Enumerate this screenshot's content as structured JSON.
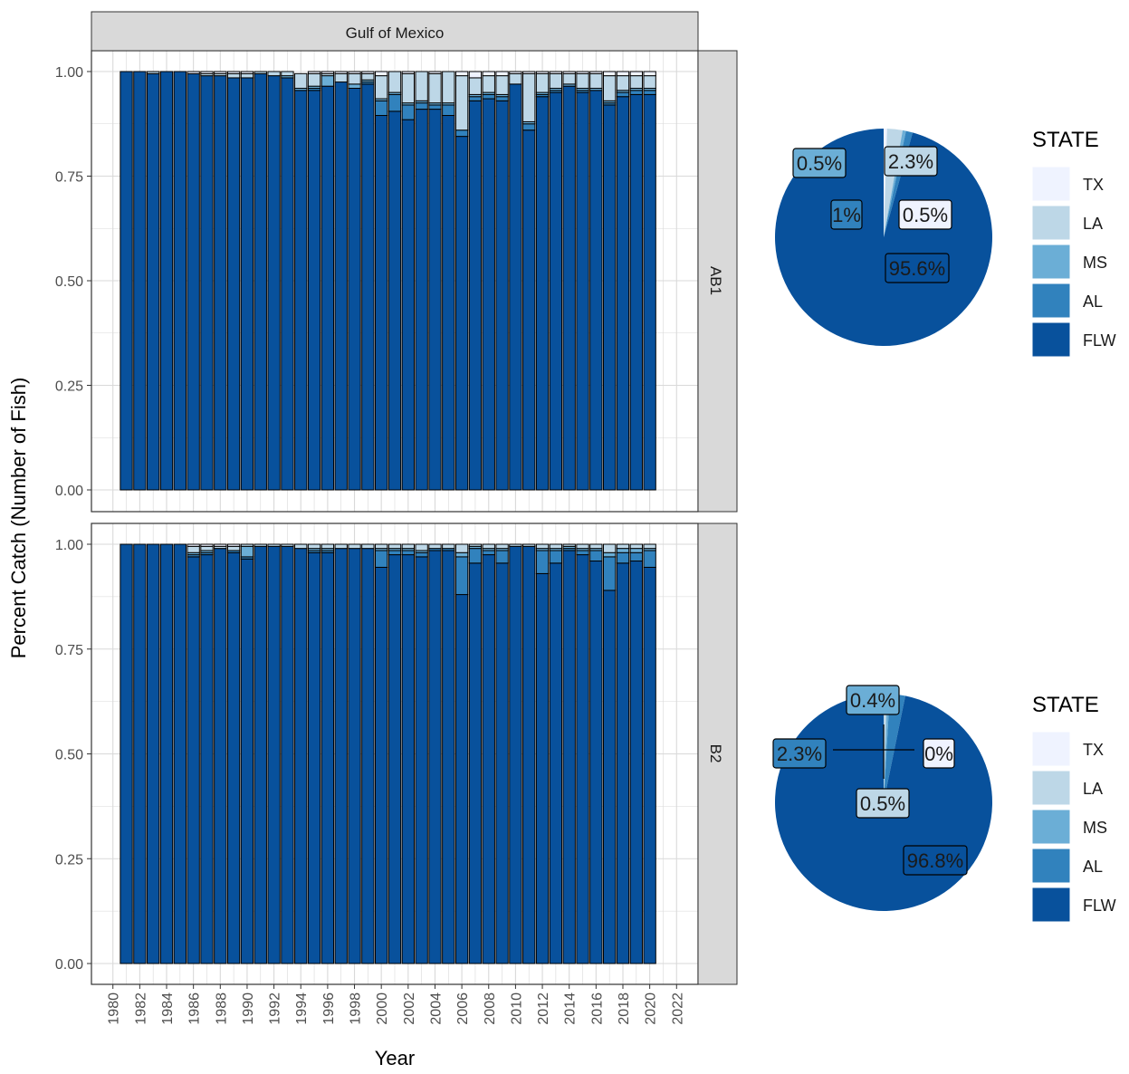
{
  "chart_data": [
    {
      "type": "bar",
      "stacked": true,
      "normalized": true,
      "title": "",
      "facet_column_label": "Gulf of Mexico",
      "xlabel": "Year",
      "ylabel": "Percent Catch (Number of Fish)",
      "ylim": [
        0,
        1
      ],
      "yticks": [
        "0.00",
        "0.25",
        "0.50",
        "0.75",
        "1.00"
      ],
      "xticks": [
        "1980",
        "1982",
        "1984",
        "1986",
        "1988",
        "1990",
        "1992",
        "1994",
        "1996",
        "1998",
        "2000",
        "2002",
        "2004",
        "2006",
        "2008",
        "2010",
        "2012",
        "2014",
        "2016",
        "2018",
        "2020",
        "2022"
      ],
      "xlim": [
        1980,
        2022
      ],
      "grid": true,
      "stack_order_bottom_to_top": [
        "FLW",
        "AL",
        "MS",
        "LA",
        "TX"
      ],
      "panels": [
        {
          "label": "AB1",
          "years": [
            1981,
            1982,
            1983,
            1984,
            1985,
            1986,
            1987,
            1988,
            1989,
            1990,
            1991,
            1992,
            1993,
            1994,
            1995,
            1996,
            1997,
            1998,
            1999,
            2000,
            2001,
            2002,
            2003,
            2004,
            2005,
            2006,
            2007,
            2008,
            2009,
            2010,
            2011,
            2012,
            2013,
            2014,
            2015,
            2016,
            2017,
            2018,
            2019,
            2020
          ],
          "series": [
            {
              "name": "FLW",
              "values": [
                1.0,
                1.0,
                0.995,
                1.0,
                1.0,
                0.995,
                0.99,
                0.99,
                0.985,
                0.985,
                0.995,
                0.99,
                0.985,
                0.955,
                0.955,
                0.965,
                0.975,
                0.96,
                0.97,
                0.895,
                0.905,
                0.885,
                0.91,
                0.91,
                0.895,
                0.845,
                0.93,
                0.935,
                0.93,
                0.97,
                0.86,
                0.94,
                0.95,
                0.965,
                0.95,
                0.955,
                0.92,
                0.94,
                0.945,
                0.945
              ]
            },
            {
              "name": "AL",
              "values": [
                0,
                0,
                0,
                0,
                0,
                0,
                0,
                0,
                0,
                0,
                0,
                0,
                0,
                0,
                0.005,
                0,
                0,
                0,
                0.005,
                0.035,
                0.04,
                0.035,
                0.015,
                0.01,
                0.025,
                0.015,
                0.01,
                0.01,
                0.01,
                0,
                0.015,
                0.005,
                0.005,
                0,
                0.005,
                0,
                0.005,
                0.01,
                0.01,
                0.01
              ]
            },
            {
              "name": "MS",
              "values": [
                0,
                0,
                0,
                0,
                0,
                0,
                0,
                0,
                0,
                0,
                0,
                0,
                0.005,
                0.005,
                0.005,
                0.025,
                0,
                0.01,
                0.005,
                0.005,
                0.005,
                0.005,
                0.005,
                0.005,
                0.005,
                0,
                0.005,
                0.005,
                0.005,
                0,
                0.005,
                0.005,
                0.005,
                0.005,
                0.005,
                0.005,
                0.005,
                0.005,
                0.005,
                0.005
              ]
            },
            {
              "name": "LA",
              "values": [
                0,
                0,
                0.005,
                0,
                0,
                0,
                0.005,
                0.005,
                0.01,
                0.01,
                0.005,
                0.01,
                0.01,
                0.035,
                0.03,
                0.005,
                0.02,
                0.025,
                0.015,
                0.055,
                0.05,
                0.07,
                0.07,
                0.07,
                0.075,
                0.13,
                0.04,
                0.04,
                0.045,
                0.025,
                0.115,
                0.045,
                0.035,
                0.025,
                0.035,
                0.035,
                0.06,
                0.035,
                0.03,
                0.03
              ]
            },
            {
              "name": "TX",
              "values": [
                0,
                0,
                0,
                0,
                0,
                0.005,
                0.005,
                0.005,
                0.005,
                0.005,
                0,
                0,
                0,
                0,
                0.005,
                0.005,
                0.005,
                0.005,
                0.005,
                0.01,
                0,
                0.005,
                0,
                0.005,
                0,
                0.01,
                0.015,
                0.01,
                0.01,
                0.005,
                0.005,
                0.005,
                0.005,
                0.005,
                0.005,
                0.005,
                0.01,
                0.01,
                0.01,
                0.01
              ]
            }
          ]
        },
        {
          "label": "B2",
          "years": [
            1981,
            1982,
            1983,
            1984,
            1985,
            1986,
            1987,
            1988,
            1989,
            1990,
            1991,
            1992,
            1993,
            1994,
            1995,
            1996,
            1997,
            1998,
            1999,
            2000,
            2001,
            2002,
            2003,
            2004,
            2005,
            2006,
            2007,
            2008,
            2009,
            2010,
            2011,
            2012,
            2013,
            2014,
            2015,
            2016,
            2017,
            2018,
            2019,
            2020
          ],
          "series": [
            {
              "name": "FLW",
              "values": [
                1.0,
                1.0,
                1.0,
                1.0,
                1.0,
                0.97,
                0.975,
                0.99,
                0.98,
                0.965,
                0.995,
                0.995,
                0.995,
                0.99,
                0.98,
                0.98,
                0.99,
                0.99,
                0.99,
                0.945,
                0.975,
                0.975,
                0.97,
                0.985,
                0.985,
                0.88,
                0.955,
                0.975,
                0.955,
                0.995,
                0.995,
                0.93,
                0.955,
                0.985,
                0.975,
                0.96,
                0.89,
                0.955,
                0.96,
                0.945
              ]
            },
            {
              "name": "AL",
              "values": [
                0,
                0,
                0,
                0,
                0,
                0.005,
                0.005,
                0,
                0.005,
                0.005,
                0,
                0,
                0,
                0,
                0.005,
                0.005,
                0,
                0,
                0,
                0.04,
                0.01,
                0.01,
                0.01,
                0.005,
                0.005,
                0.09,
                0.035,
                0.01,
                0.03,
                0,
                0,
                0.055,
                0.03,
                0.005,
                0.01,
                0.025,
                0.08,
                0.025,
                0.02,
                0.04
              ]
            },
            {
              "name": "MS",
              "values": [
                0,
                0,
                0,
                0,
                0,
                0.005,
                0.005,
                0,
                0,
                0.025,
                0,
                0,
                0,
                0,
                0.005,
                0.005,
                0,
                0,
                0,
                0.005,
                0.005,
                0.005,
                0.005,
                0,
                0,
                0.01,
                0.005,
                0.005,
                0.005,
                0,
                0,
                0.005,
                0.005,
                0.005,
                0.005,
                0.005,
                0.01,
                0.01,
                0.01,
                0.005
              ]
            },
            {
              "name": "LA",
              "values": [
                0,
                0,
                0,
                0,
                0,
                0.015,
                0.01,
                0.005,
                0.01,
                0.005,
                0.005,
                0.005,
                0.005,
                0.01,
                0.01,
                0.01,
                0.01,
                0.01,
                0.01,
                0.01,
                0.01,
                0.01,
                0.015,
                0.01,
                0.01,
                0.02,
                0.005,
                0.01,
                0.01,
                0.005,
                0.005,
                0.01,
                0.01,
                0.005,
                0.01,
                0.01,
                0.02,
                0.01,
                0.01,
                0.01
              ]
            },
            {
              "name": "TX",
              "values": [
                0,
                0,
                0,
                0,
                0,
                0.005,
                0.005,
                0.005,
                0.005,
                0,
                0,
                0,
                0,
                0,
                0,
                0,
                0,
                0,
                0,
                0,
                0,
                0,
                0,
                0,
                0,
                0,
                0,
                0,
                0,
                0,
                0,
                0,
                0,
                0,
                0,
                0,
                0,
                0,
                0,
                0
              ]
            }
          ]
        }
      ]
    },
    {
      "type": "pie",
      "for_panel": "AB1",
      "legend_title": "STATE",
      "slices": [
        {
          "name": "TX",
          "value": 0.5,
          "label": "0.5%"
        },
        {
          "name": "LA",
          "value": 2.3,
          "label": "2.3%"
        },
        {
          "name": "MS",
          "value": 0.5,
          "label": "0.5%"
        },
        {
          "name": "AL",
          "value": 1.0,
          "label": "1%"
        },
        {
          "name": "FLW",
          "value": 95.6,
          "label": "95.6%"
        }
      ]
    },
    {
      "type": "pie",
      "for_panel": "B2",
      "legend_title": "STATE",
      "slices": [
        {
          "name": "TX",
          "value": 0.0,
          "label": "0%"
        },
        {
          "name": "LA",
          "value": 0.5,
          "label": "0.5%"
        },
        {
          "name": "MS",
          "value": 0.4,
          "label": "0.4%"
        },
        {
          "name": "AL",
          "value": 2.3,
          "label": "2.3%"
        },
        {
          "name": "FLW",
          "value": 96.8,
          "label": "96.8%"
        }
      ]
    }
  ],
  "legend": {
    "title": "STATE",
    "items": [
      "TX",
      "LA",
      "MS",
      "AL",
      "FLW"
    ]
  },
  "colors": {
    "TX": "#eff3ff",
    "LA": "#bdd7e7",
    "MS": "#6baed6",
    "AL": "#3182bd",
    "FLW": "#08519c",
    "strip_fill": "#d9d9d9",
    "grid": "#d9d9d9",
    "bar_outline": "#000000"
  }
}
